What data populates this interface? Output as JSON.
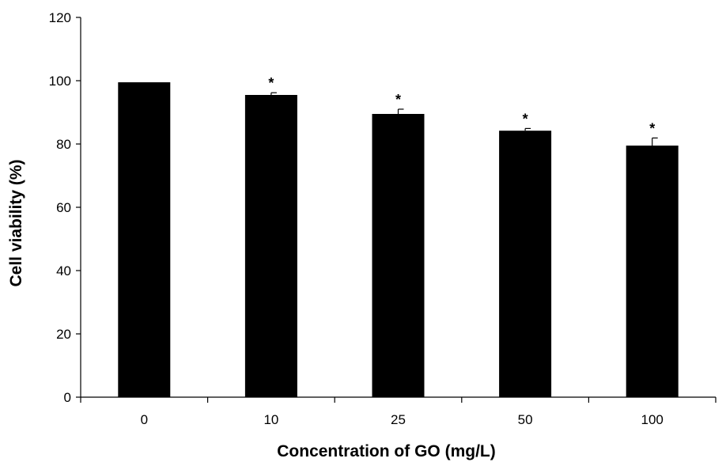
{
  "chart_data": {
    "type": "bar",
    "categories": [
      "0",
      "10",
      "25",
      "50",
      "100"
    ],
    "values": [
      99.5,
      95.5,
      89.5,
      84.2,
      79.5
    ],
    "error": [
      0,
      0.7,
      1.5,
      0.7,
      2.4
    ],
    "annotations": [
      "",
      "*",
      "*",
      "*",
      "*"
    ],
    "xlabel": "Concentration of GO (mg/L)",
    "ylabel": "Cell viability (%)",
    "ylim": [
      0,
      120
    ],
    "yticks": [
      0,
      20,
      40,
      60,
      80,
      100,
      120
    ],
    "grid": false,
    "bar_color": "#000000"
  }
}
